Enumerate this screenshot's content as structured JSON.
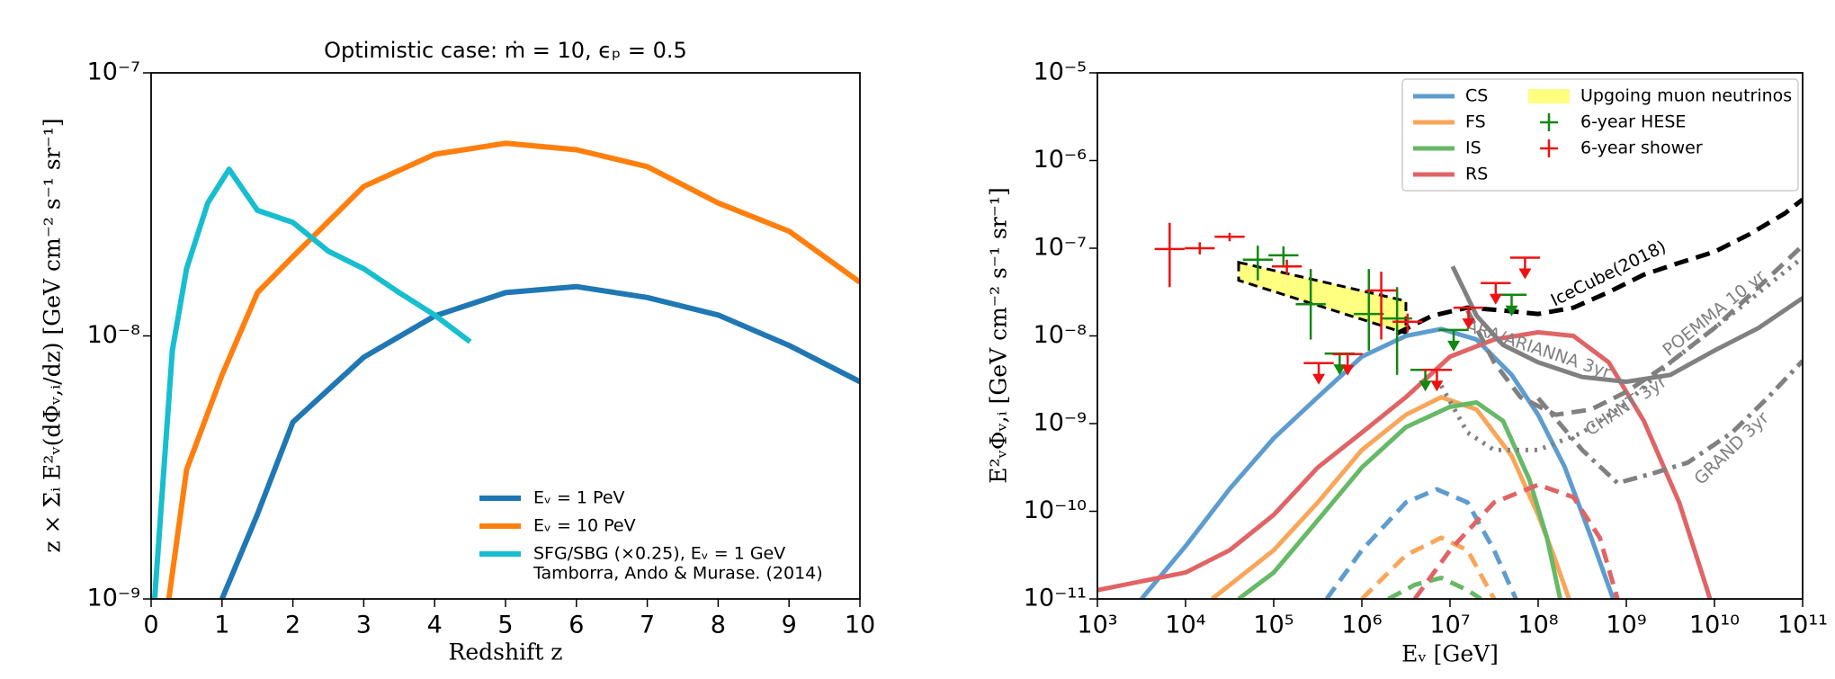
{
  "chart_data": [
    {
      "type": "line",
      "title": "Optimistic case: ṁ = 10,  ϵₚ = 0.5",
      "xlabel": "Redshift z",
      "ylabel": "z × Σᵢ E²ᵥ(dΦᵥ,ᵢ/dz) [GeV cm⁻² s⁻¹ sr⁻¹]",
      "xscale": "linear",
      "yscale": "log",
      "xlim": [
        0,
        10
      ],
      "ylim": [
        1e-09,
        1e-07
      ],
      "xticks": [
        0,
        1,
        2,
        3,
        4,
        5,
        6,
        7,
        8,
        9,
        10
      ],
      "yticks": [
        {
          "value": 1e-09,
          "label": "10⁻⁹"
        },
        {
          "value": 1e-08,
          "label": "10⁻⁸"
        },
        {
          "value": 1e-07,
          "label": "10⁻⁷"
        }
      ],
      "legend": "lower right",
      "series": [
        {
          "name": "Eᵥ = 1 PeV",
          "color": "#1f77b4",
          "linestyle": "solid",
          "x": [
            1,
            1.5,
            2,
            3,
            4,
            5,
            6,
            7,
            8,
            9,
            10
          ],
          "values": [
            1e-09,
            2.1e-09,
            4.7e-09,
            8.3e-09,
            1.19e-08,
            1.46e-08,
            1.54e-08,
            1.4e-08,
            1.2e-08,
            9.2e-09,
            6.7e-09
          ]
        },
        {
          "name": "Eᵥ = 10 PeV",
          "color": "#ff7f0e",
          "linestyle": "solid",
          "x": [
            0.25,
            0.5,
            1,
            1.5,
            2,
            3,
            4,
            5,
            6,
            7,
            8,
            9,
            10
          ],
          "values": [
            1e-09,
            3.1e-09,
            7.1e-09,
            1.46e-08,
            2e-08,
            3.7e-08,
            4.9e-08,
            5.4e-08,
            5.1e-08,
            4.4e-08,
            3.2e-08,
            2.5e-08,
            1.6e-08
          ]
        },
        {
          "name": "SFG/SBG (×0.25), Eᵥ = 1 GeV",
          "source": "Tamborra, Ando & Murase. (2014)",
          "color": "#17becf",
          "linestyle": "solid",
          "x": [
            0.05,
            0.3,
            0.5,
            0.8,
            1.1,
            1.5,
            2,
            2.5,
            3,
            3.5,
            4,
            4.5
          ],
          "values": [
            1e-09,
            8.8e-09,
            1.8e-08,
            3.2e-08,
            4.3e-08,
            3e-08,
            2.7e-08,
            2.1e-08,
            1.8e-08,
            1.46e-08,
            1.2e-08,
            9.5e-09
          ]
        }
      ]
    },
    {
      "type": "line",
      "xlabel": "Eᵥ [GeV]",
      "ylabel": "E²ᵥΦᵥ,ᵢ [GeV cm⁻² s⁻¹ sr⁻¹]",
      "xscale": "log",
      "yscale": "log",
      "xlim": [
        1000.0,
        100000000000.0
      ],
      "ylim": [
        1e-11,
        1e-05
      ],
      "xticks": [
        {
          "value": 1000.0,
          "label": "10³"
        },
        {
          "value": 10000.0,
          "label": "10⁴"
        },
        {
          "value": 100000.0,
          "label": "10⁵"
        },
        {
          "value": 1000000.0,
          "label": "10⁶"
        },
        {
          "value": 10000000.0,
          "label": "10⁷"
        },
        {
          "value": 100000000.0,
          "label": "10⁸"
        },
        {
          "value": 1000000000.0,
          "label": "10⁹"
        },
        {
          "value": 10000000000.0,
          "label": "10¹⁰"
        },
        {
          "value": 100000000000.0,
          "label": "10¹¹"
        }
      ],
      "yticks": [
        {
          "value": 1e-11,
          "label": "10⁻¹¹"
        },
        {
          "value": 1e-10,
          "label": "10⁻¹⁰"
        },
        {
          "value": 1e-09,
          "label": "10⁻⁹"
        },
        {
          "value": 1e-08,
          "label": "10⁻⁸"
        },
        {
          "value": 1e-07,
          "label": "10⁻⁷"
        },
        {
          "value": 1e-06,
          "label": "10⁻⁶"
        },
        {
          "value": 1e-05,
          "label": "10⁻⁵"
        }
      ],
      "legend": "upper right",
      "band": {
        "name": "Upgoing muon neutrinos",
        "color": "#ffff80",
        "edge": "#000000",
        "x": [
          40000.0,
          3160000.0
        ],
        "upper": [
          6.9e-08,
          2.5e-08
        ],
        "lower": [
          4.3e-08,
          1.07e-08
        ]
      },
      "series": [
        {
          "name": "CS",
          "color": "#5e9ccf",
          "linestyle": "solid",
          "x": [
            3160.0,
            10000.0,
            31600.0,
            100000.0,
            316000.0,
            1000000.0,
            3160000.0,
            7940000.0,
            20000000.0,
            50000000.0,
            100000000.0,
            200000000.0,
            400000000.0,
            710000000.0
          ],
          "values": [
            1e-11,
            4e-11,
            1.8e-10,
            6.8e-10,
            2e-09,
            5.8e-09,
            1e-08,
            1.2e-08,
            9.1e-09,
            3.6e-09,
            1.26e-09,
            3.2e-10,
            5e-11,
            1e-11
          ]
        },
        {
          "name": "FS",
          "color": "#f9a65a",
          "linestyle": "solid",
          "x": [
            20000.0,
            100000.0,
            316000.0,
            1000000.0,
            3160000.0,
            7940000.0,
            20000000.0,
            50000000.0,
            100000000.0,
            158000000.0,
            224000000.0
          ],
          "values": [
            1e-11,
            3.6e-11,
            1.26e-10,
            5e-10,
            1.26e-09,
            2e-09,
            1.45e-09,
            4.3e-10,
            9.1e-11,
            2.7e-11,
            1e-11
          ]
        },
        {
          "name": "IS",
          "color": "#66b966",
          "linestyle": "solid",
          "x": [
            40000.0,
            100000.0,
            316000.0,
            1000000.0,
            3160000.0,
            10000000.0,
            20000000.0,
            40000000.0,
            79400000.0,
            126000000.0,
            178000000.0
          ],
          "values": [
            1e-11,
            2e-11,
            7.9e-11,
            3.16e-10,
            9.1e-10,
            1.55e-09,
            1.74e-09,
            1.07e-09,
            2.3e-10,
            5e-11,
            1e-11
          ]
        },
        {
          "name": "RS",
          "color": "#e06466",
          "linestyle": "solid",
          "x": [
            1000.0,
            10000.0,
            31600.0,
            100000.0,
            316000.0,
            1000000.0,
            3160000.0,
            10000000.0,
            31600000.0,
            100000000.0,
            251000000.0,
            631000000.0,
            1580000000.0,
            3980000000.0,
            7940000000.0,
            8900000000.0
          ],
          "values": [
            1.26e-11,
            2e-11,
            3.6e-11,
            9.1e-11,
            3.16e-10,
            7.9e-10,
            2e-09,
            5.8e-09,
            9.1e-09,
            1.1e-08,
            1e-08,
            5e-09,
            1.07e-09,
            1.26e-10,
            1.45e-11,
            1e-11
          ]
        },
        {
          "color": "#5e9ccf",
          "linestyle": "dashed",
          "x": [
            398000.0,
            1000000.0,
            3160000.0,
            7100000.0,
            15800000.0,
            31600000.0,
            56000000.0
          ],
          "values": [
            1e-11,
            3.6e-11,
            1.26e-10,
            1.78e-10,
            1.26e-10,
            3.6e-11,
            1e-11
          ]
        },
        {
          "color": "#f9a65a",
          "linestyle": "dashed",
          "x": [
            1000000.0,
            3160000.0,
            7940000.0,
            15800000.0,
            31600000.0
          ],
          "values": [
            1e-11,
            3.16e-11,
            5e-11,
            3.6e-11,
            1e-11
          ]
        },
        {
          "color": "#66b966",
          "linestyle": "dashed",
          "x": [
            2000000.0,
            3980000.0,
            7940000.0,
            15800000.0,
            22400000.0
          ],
          "values": [
            1e-11,
            1.45e-11,
            1.74e-11,
            1.26e-11,
            1e-11
          ]
        },
        {
          "color": "#e06466",
          "linestyle": "dashed",
          "x": [
            3980000.0,
            10000000.0,
            31600000.0,
            100000000.0,
            251000000.0,
            500000000.0,
            794000000.0
          ],
          "values": [
            1e-11,
            3.6e-11,
            1.26e-10,
            2e-10,
            1.45e-10,
            5e-11,
            1e-11
          ]
        },
        {
          "label": "IceCube(2018)",
          "color": "#000000",
          "linestyle": "dashed",
          "x": [
            2510000.0,
            6310000.0,
            15800000.0,
            39800000.0,
            100000000.0,
            251000000.0,
            631000000.0,
            1580000000.0,
            3980000000.0,
            10000000000.0,
            25100000000.0,
            63100000000.0,
            100000000000.0
          ],
          "values": [
            1.07e-08,
            1.7e-08,
            2.1e-08,
            1.95e-08,
            1.78e-08,
            2.1e-08,
            3.16e-08,
            5e-08,
            6.8e-08,
            9.1e-08,
            1.45e-07,
            2.5e-07,
            3.6e-07
          ]
        },
        {
          "label": "ARA/ARIANNA 3yr",
          "color": "#808080",
          "linestyle": "solid",
          "x": [
            10700000.0,
            20000000.0,
            39800000.0,
            100000000.0,
            316000000.0,
            1000000000.0,
            3160000000.0,
            10000000000.0,
            31600000000.0,
            100000000000.0
          ],
          "values": [
            6.2e-08,
            1.7e-08,
            7.9e-09,
            5e-09,
            3.4e-09,
            3e-09,
            3.6e-09,
            6.8e-09,
            1.23e-08,
            2.7e-08
          ]
        },
        {
          "label": "CHANT 3yr",
          "color": "#808080",
          "linestyle": "dashed",
          "x": [
            15800000.0,
            31600000.0,
            63100000.0,
            158000000.0,
            398000000.0,
            1000000000.0,
            3160000000.0,
            10000000000.0,
            31600000000.0,
            100000000000.0
          ],
          "values": [
            1.95e-08,
            5e-09,
            2e-09,
            1.26e-09,
            1.45e-09,
            2.3e-09,
            5e-09,
            1.23e-08,
            3.6e-08,
            1.07e-07
          ]
        },
        {
          "label": "POEMMA 10 yr",
          "color": "#808080",
          "linestyle": "dotted",
          "x": [
            7940000.0,
            15800000.0,
            31600000.0,
            100000000.0,
            316000000.0,
            1000000000.0,
            3160000000.0,
            10000000000.0,
            31600000000.0,
            100000000000.0
          ],
          "values": [
            2.7e-09,
            7.9e-10,
            5e-10,
            5e-10,
            7.9e-10,
            1.7e-09,
            5e-09,
            1.23e-08,
            3.1e-08,
            7.8e-08
          ]
        },
        {
          "label": "GRAND 3yr",
          "color": "#808080",
          "linestyle": "dashdot",
          "x": [
            100000000.0,
            316000000.0,
            794000000.0,
            2000000000.0,
            5000000000.0,
            15800000000.0,
            39800000000.0,
            100000000000.0
          ],
          "values": [
            1.95e-09,
            5e-10,
            2.1e-10,
            2.7e-10,
            3.6e-10,
            7.9e-10,
            1.95e-09,
            5.2e-09
          ]
        }
      ],
      "points": [
        {
          "name": "6-year HESE",
          "color": "#118811",
          "x": [
            66000.0,
            129000.0,
            263000.0,
            1200000.0,
            2510000.0
          ],
          "values": [
            7.4e-08,
            8.3e-08,
            2.3e-08,
            1.78e-08,
            1.58e-08
          ],
          "low": [
            4.3e-08,
            6.3e-08,
            9.1e-09,
            6.8e-09,
            3.6e-09
          ],
          "high": [
            1.07e-07,
            1.05e-07,
            5.8e-08,
            5.8e-08,
            3.6e-08
          ],
          "upper_limits": {
            "x": [
              560000.0,
              5250000.0,
              11000000.0,
              50000000.0
            ],
            "values": [
              6.3e-09,
              4.1e-09,
              1.17e-08,
              2.95e-08
            ]
          }
        },
        {
          "name": "6-year shower",
          "color": "#ee1111",
          "x": [
            6600.0,
            14500.0,
            31600.0,
            141000.0,
            1660000.0,
            3300000.0
          ],
          "values": [
            9.8e-08,
            1e-07,
            1.35e-07,
            6.2e-08,
            3.3e-08,
            1.45e-08
          ],
          "low": [
            3.6e-08,
            8.5e-08,
            1.2e-07,
            5e-08,
            9.1e-09,
            1.1e-08
          ],
          "high": [
            1.95e-07,
            1.17e-07,
            1.5e-07,
            7.4e-08,
            5.4e-08,
            1.8e-08
          ],
          "upper_limits": {
            "x": [
              324000.0,
              690000.0,
              7100000.0,
              16200000.0,
              33000000.0,
              71000000.0
            ],
            "values": [
              4.9e-09,
              6.2e-09,
              4.1e-09,
              2.1e-08,
              4e-08,
              7.8e-08
            ]
          }
        }
      ]
    }
  ]
}
